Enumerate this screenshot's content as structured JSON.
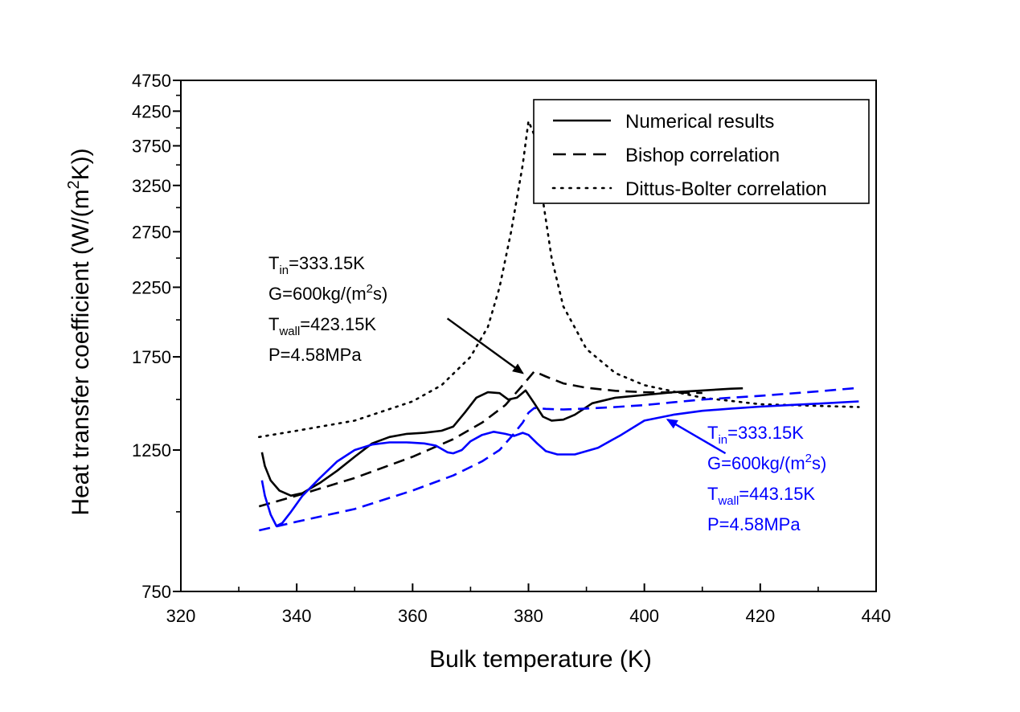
{
  "chart_data": {
    "type": "line",
    "xlabel": "Bulk temperature (K)",
    "ylabel_parts": [
      "Heat transfer coefficient (W/(m",
      "2",
      "K))"
    ],
    "xlim": [
      320,
      440
    ],
    "ylim": [
      750,
      4750
    ],
    "y_scale": "log",
    "x_ticks": [
      320,
      340,
      360,
      380,
      400,
      420,
      440
    ],
    "x_tick_labels": [
      "320",
      "340",
      "360",
      "380",
      "400",
      "420",
      "440"
    ],
    "y_ticks": [
      750,
      1250,
      1750,
      2250,
      2750,
      3250,
      3750,
      4250,
      4750
    ],
    "y_tick_labels": [
      "750",
      "1250",
      "1750",
      "2250",
      "2750",
      "3250",
      "3750",
      "4250",
      "4750"
    ],
    "legend_position": "top-right",
    "legend": [
      {
        "label": "Numerical results",
        "style": "solid"
      },
      {
        "label": "Bishop correlation",
        "style": "dashed"
      },
      {
        "label": "Dittus-Bolter correlation",
        "style": "dotted"
      }
    ],
    "series": [
      {
        "group": "black",
        "style": "solid",
        "color": "#000000",
        "x": [
          334,
          334.5,
          335.5,
          337,
          339,
          341,
          344,
          347,
          350,
          353,
          356,
          359,
          362,
          365,
          367,
          369,
          371,
          373,
          375,
          376.5,
          378,
          379.5,
          381,
          382.5,
          384,
          386,
          388,
          391,
          395,
          400,
          405,
          410,
          415,
          417
        ],
        "y": [
          1240,
          1180,
          1120,
          1080,
          1060,
          1070,
          1110,
          1160,
          1220,
          1280,
          1310,
          1325,
          1330,
          1340,
          1360,
          1430,
          1510,
          1540,
          1535,
          1500,
          1510,
          1550,
          1480,
          1410,
          1390,
          1395,
          1420,
          1480,
          1510,
          1525,
          1540,
          1550,
          1560,
          1562
        ]
      },
      {
        "group": "black",
        "style": "dashed",
        "color": "#000000",
        "x": [
          333.5,
          340,
          350,
          360,
          367,
          372,
          376,
          379,
          381,
          383,
          386,
          390,
          395,
          400,
          405,
          410
        ],
        "y": [
          1020,
          1060,
          1130,
          1220,
          1300,
          1380,
          1470,
          1580,
          1660,
          1630,
          1590,
          1565,
          1548,
          1540,
          1538,
          1536
        ]
      },
      {
        "group": "black",
        "style": "dotted",
        "color": "#000000",
        "x": [
          333.5,
          340,
          350,
          360,
          365,
          370,
          373,
          375,
          377,
          379,
          380,
          381,
          382,
          384,
          386,
          390,
          395,
          400,
          410,
          420,
          437
        ],
        "y": [
          1310,
          1340,
          1390,
          1490,
          1580,
          1750,
          1950,
          2250,
          2750,
          3500,
          4100,
          3900,
          3300,
          2500,
          2100,
          1800,
          1650,
          1580,
          1510,
          1475,
          1460
        ]
      },
      {
        "group": "blue",
        "style": "solid",
        "color": "#0000ff",
        "x": [
          334,
          334.5,
          335.5,
          336.5,
          337.5,
          339,
          341,
          344,
          347,
          350,
          353,
          356,
          359,
          362,
          364,
          366,
          367,
          368.5,
          370,
          372,
          374,
          376,
          377.5,
          379,
          380,
          381.5,
          383,
          385,
          388,
          392,
          396,
          400,
          405,
          410,
          415,
          420,
          425,
          430,
          437
        ],
        "y": [
          1120,
          1060,
          990,
          950,
          960,
          1000,
          1060,
          1130,
          1200,
          1250,
          1275,
          1285,
          1285,
          1280,
          1270,
          1240,
          1235,
          1250,
          1290,
          1320,
          1335,
          1325,
          1315,
          1330,
          1320,
          1280,
          1245,
          1230,
          1230,
          1260,
          1320,
          1390,
          1420,
          1440,
          1452,
          1462,
          1470,
          1478,
          1490
        ]
      },
      {
        "group": "blue",
        "style": "dashed",
        "color": "#0000ff",
        "x": [
          333.5,
          340,
          350,
          360,
          367,
          372,
          375,
          377,
          379,
          380,
          381,
          383,
          386,
          390,
          395,
          400,
          405,
          410,
          420,
          430,
          437
        ],
        "y": [
          935,
          965,
          1010,
          1080,
          1140,
          1200,
          1250,
          1310,
          1380,
          1430,
          1455,
          1450,
          1447,
          1452,
          1460,
          1470,
          1485,
          1500,
          1520,
          1545,
          1565
        ]
      }
    ],
    "annotations": [
      {
        "color": "#000000",
        "lines": [
          {
            "t": "T",
            "sub": "in",
            "rest": "=333.15K"
          },
          {
            "t": "G=600kg/(m",
            "sup": "2",
            "rest": "s)"
          },
          {
            "t": "T",
            "sub": "wall",
            "rest": "=423.15K"
          },
          {
            "t": "P=4.58MPa"
          }
        ],
        "arrow_from": [
          366,
          2010
        ],
        "arrow_to": [
          379,
          1650
        ]
      },
      {
        "color": "#0000ff",
        "lines": [
          {
            "t": "T",
            "sub": "in",
            "rest": "=333.15K"
          },
          {
            "t": "G=600kg/(m",
            "sup": "2",
            "rest": "s)"
          },
          {
            "t": "T",
            "sub": "wall",
            "rest": "=443.15K"
          },
          {
            "t": "P=4.58MPa"
          }
        ],
        "arrow_from": [
          414,
          1235
        ],
        "arrow_to": [
          404,
          1395
        ]
      }
    ]
  }
}
